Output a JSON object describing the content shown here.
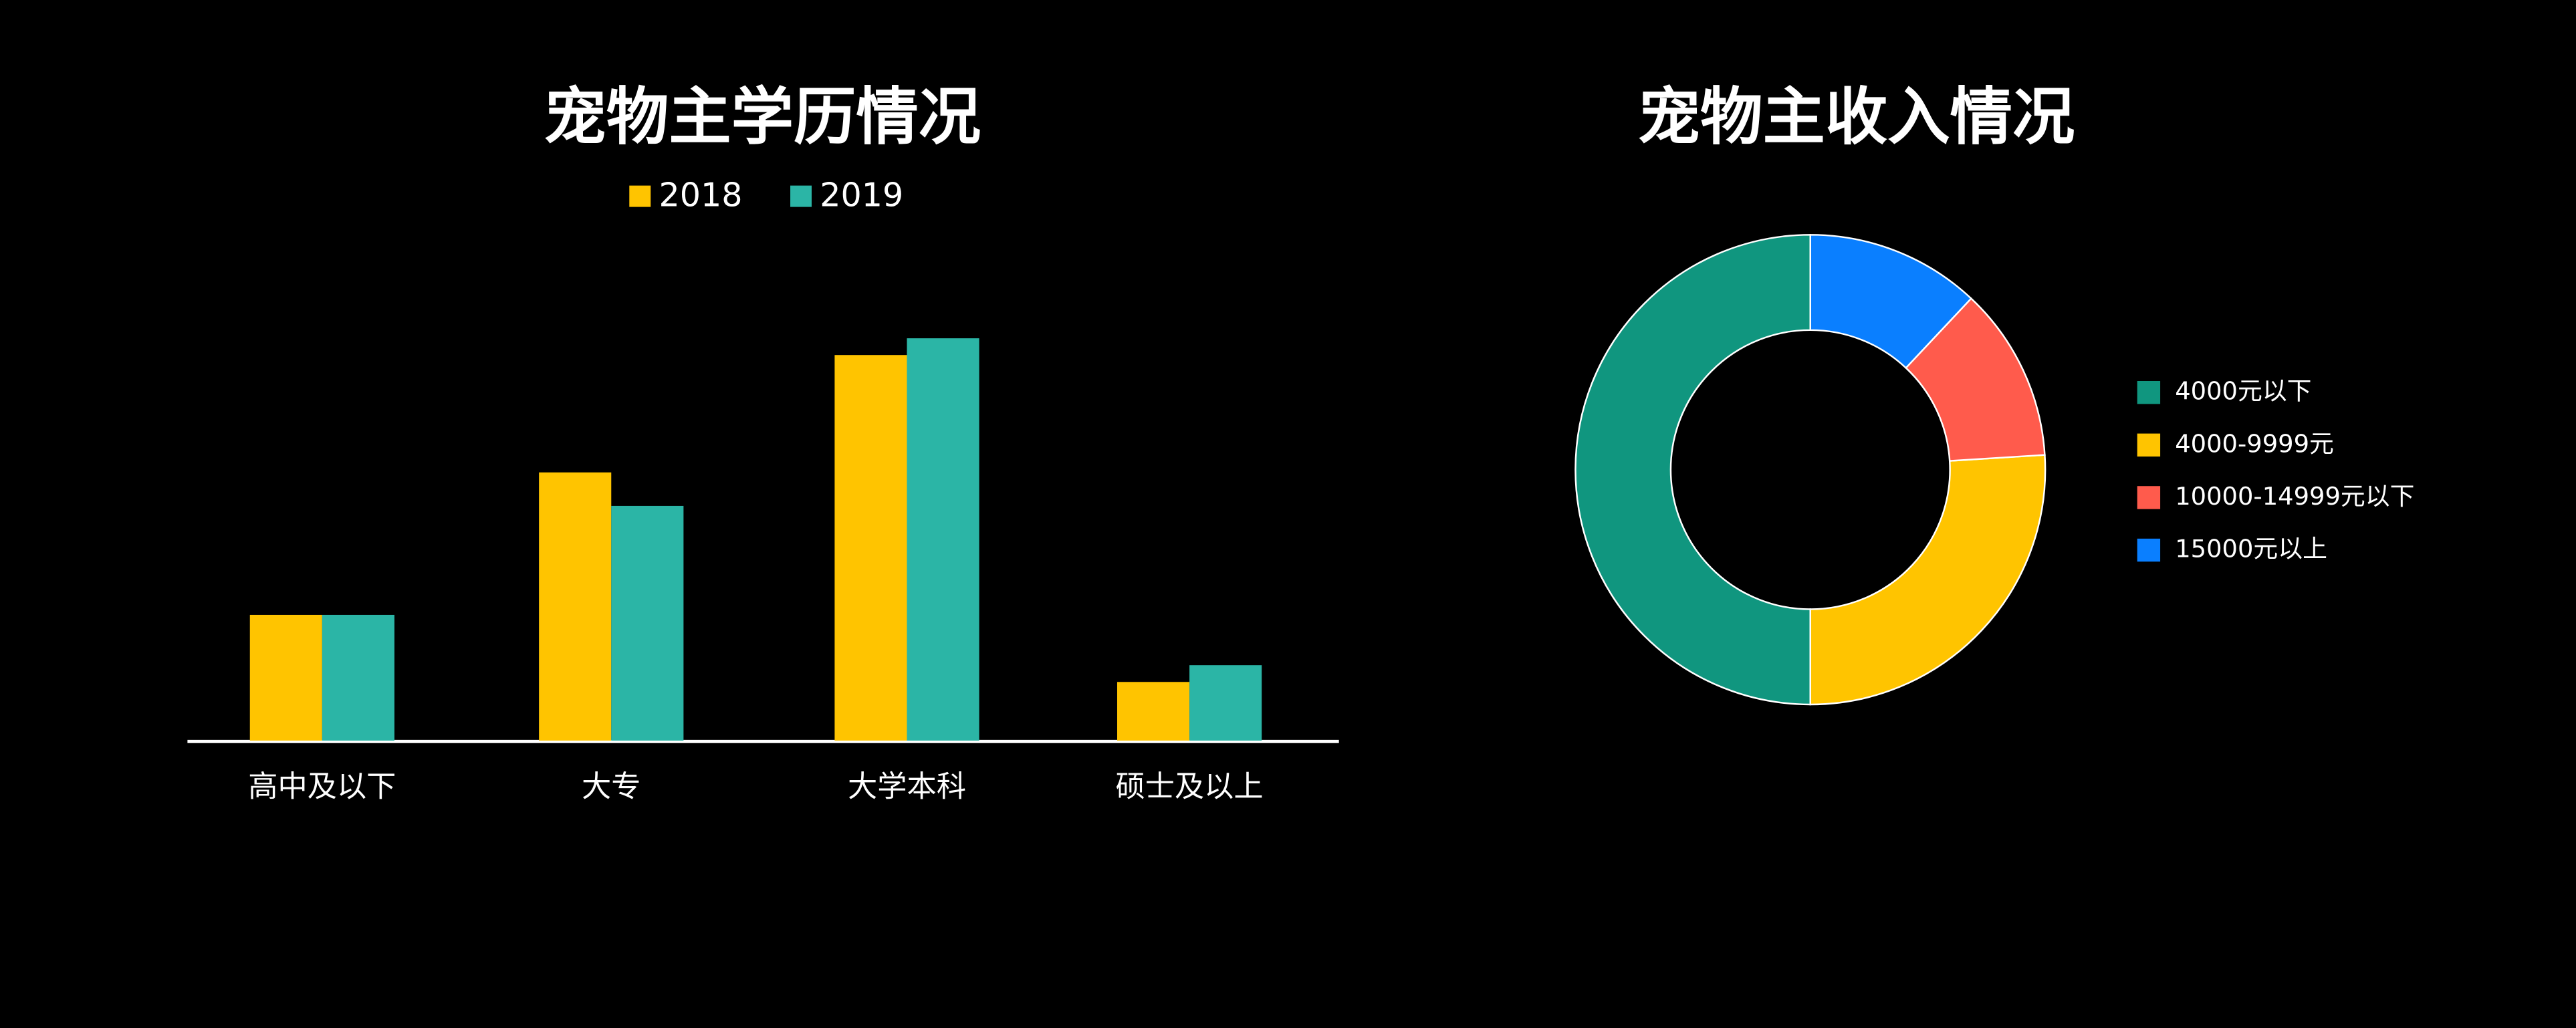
{
  "chart_data": [
    {
      "type": "bar",
      "title": "宠物主学历情况",
      "categories": [
        "高中及以下",
        "大专",
        "大学本科",
        "硕士及以上"
      ],
      "series": [
        {
          "name": "2018",
          "color": "#FFC400",
          "values": [
            15,
            32,
            46,
            7
          ]
        },
        {
          "name": "2019",
          "color": "#2BB5A6",
          "values": [
            15,
            28,
            48,
            9
          ]
        }
      ]
    },
    {
      "type": "pie",
      "title": "宠物主收入情况",
      "donut": true,
      "categories": [
        "4000元以下",
        "4000-9999元",
        "10000-14999元以下",
        "15000元以上"
      ],
      "values": [
        50,
        26,
        12,
        12
      ],
      "colors": [
        "#10967F",
        "#FFC400",
        "#FF5B4C",
        "#0A7FFF"
      ]
    }
  ]
}
